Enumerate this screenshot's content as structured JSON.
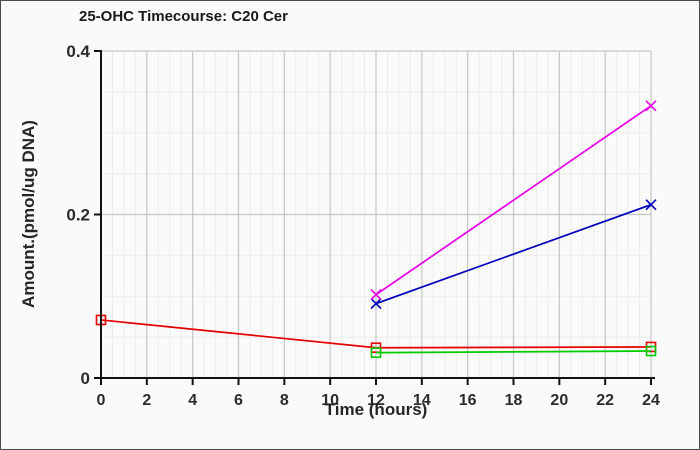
{
  "frame": {
    "background": "#fafafa",
    "border_color": "#4a4a4a"
  },
  "chart_data": {
    "type": "line",
    "title": "25-OHC Timecourse: C20 Cer",
    "xlabel": "Time (hours)",
    "ylabel": "Amount.(pmol/ug DNA)",
    "xlim": [
      0,
      24
    ],
    "ylim": [
      0,
      0.4
    ],
    "x_ticks": [
      "0",
      "2",
      "4",
      "6",
      "8",
      "10",
      "12",
      "14",
      "16",
      "18",
      "20",
      "22",
      "24"
    ],
    "y_ticks": [
      {
        "value": 0,
        "label": "0"
      },
      {
        "value": 0.2,
        "label": "0.2"
      },
      {
        "value": 0.4,
        "label": "0.4"
      }
    ],
    "x_minor_step": 0.5,
    "y_minor_step": 0.05,
    "grid": {
      "on": true,
      "major_color": "#c6c6c6",
      "minor_color": "#ececec"
    },
    "legend": "none",
    "axis_color": "#111111",
    "tick_label_color": "#2b2b2b",
    "series": [
      {
        "name": "red-squares",
        "color": "#e40000",
        "marker": "square",
        "points": [
          [
            0,
            0.071
          ],
          [
            12,
            0.037
          ],
          [
            24,
            0.038
          ]
        ]
      },
      {
        "name": "green-squares",
        "color": "#00cc00",
        "marker": "square",
        "points": [
          [
            12,
            0.031
          ],
          [
            24,
            0.033
          ]
        ]
      },
      {
        "name": "blue-x",
        "color": "#0000bb",
        "marker": "x",
        "points": [
          [
            12,
            0.091
          ],
          [
            24,
            0.212
          ]
        ]
      },
      {
        "name": "magenta-x",
        "color": "#e800e8",
        "marker": "x",
        "points": [
          [
            12,
            0.102
          ],
          [
            24,
            0.333
          ]
        ]
      }
    ]
  }
}
